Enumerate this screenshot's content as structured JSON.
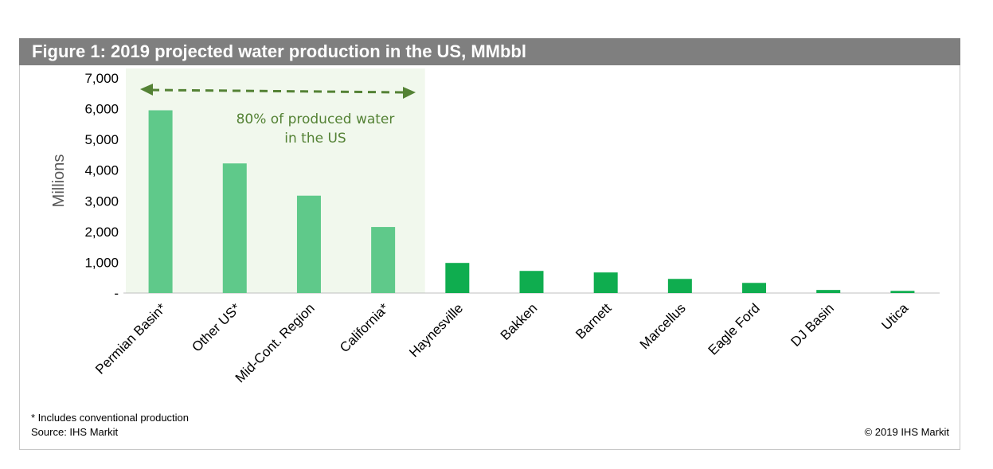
{
  "title": "Figure 1: 2019 projected water production in the US, MMbbl",
  "footnote": "* Includes conventional production",
  "source": "Source: IHS Markit",
  "copyright": "© 2019 IHS Markit",
  "annotation": {
    "line1": "80% of produced water",
    "line2": "in the US",
    "color": "#548235",
    "highlight_color": "#f1f8ed"
  },
  "colors": {
    "highlight_bar": "#5fc98a",
    "bar": "#0fad4f",
    "axis": "#bfbfbf",
    "title_bar": "#7f7f7f"
  },
  "chart_data": {
    "type": "bar",
    "title": "Figure 1: 2019 projected water production in the US, MMbbl",
    "ylabel": "Millions",
    "xlabel": "",
    "ylim": [
      0,
      7000
    ],
    "yticks": [
      0,
      1000,
      2000,
      3000,
      4000,
      5000,
      6000,
      7000
    ],
    "ytick_labels": [
      "-",
      "1,000",
      "2,000",
      "3,000",
      "4,000",
      "5,000",
      "6,000",
      "7,000"
    ],
    "categories": [
      "Permian Basin*",
      "Other US*",
      "Mid-Cont. Region",
      "California*",
      "Haynesville",
      "Bakken",
      "Barnett",
      "Marcellus",
      "Eagle Ford",
      "DJ Basin",
      "Utica"
    ],
    "values": [
      5950,
      4220,
      3170,
      2150,
      980,
      720,
      670,
      460,
      330,
      100,
      70
    ],
    "highlighted_categories": [
      "Permian Basin*",
      "Other US*",
      "Mid-Cont. Region",
      "California*"
    ],
    "grid": false,
    "legend": "none"
  }
}
